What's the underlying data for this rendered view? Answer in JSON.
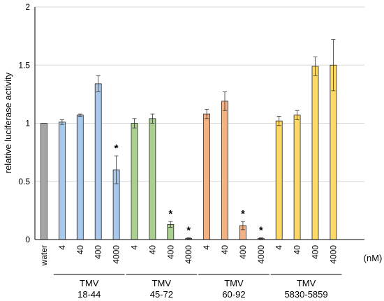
{
  "chart_data": {
    "type": "bar",
    "ylabel": "relative luciferase activity",
    "unit_label": "(nM)",
    "ylim": [
      0,
      2
    ],
    "yticks": [
      0,
      0.5,
      1,
      1.5,
      2
    ],
    "ytick_labels": [
      "0",
      "0.5",
      "1",
      "1.5",
      "2"
    ],
    "grid": true,
    "categories": [
      "water",
      "4",
      "40",
      "400",
      "4000",
      "4",
      "40",
      "400",
      "4000",
      "4",
      "40",
      "400",
      "4000",
      "4",
      "40",
      "400",
      "4000"
    ],
    "values": [
      1.0,
      1.01,
      1.07,
      1.34,
      0.6,
      1.0,
      1.04,
      0.13,
      0.01,
      1.08,
      1.19,
      0.12,
      0.01,
      1.02,
      1.07,
      1.49,
      1.5
    ],
    "errors": [
      0,
      0.02,
      0.01,
      0.07,
      0.12,
      0.04,
      0.04,
      0.025,
      0.005,
      0.04,
      0.08,
      0.035,
      0.005,
      0.04,
      0.04,
      0.08,
      0.22
    ],
    "significant": [
      false,
      false,
      false,
      false,
      true,
      false,
      false,
      true,
      true,
      false,
      false,
      true,
      true,
      false,
      false,
      false,
      false
    ],
    "sig_marker": "*",
    "group_of": [
      0,
      1,
      1,
      1,
      1,
      2,
      2,
      2,
      2,
      3,
      3,
      3,
      3,
      4,
      4,
      4,
      4
    ],
    "groups": [
      {
        "name": "water",
        "color": "#a6a6a6"
      },
      {
        "name_line1": "TMV",
        "name_line2": "18-44",
        "color": "#a9c9ec"
      },
      {
        "name_line1": "TMV",
        "name_line2": "45-72",
        "color": "#a9d08e"
      },
      {
        "name_line1": "TMV",
        "name_line2": "60-92",
        "color": "#f4b183"
      },
      {
        "name_line1": "TMV",
        "name_line2": "5830-5859",
        "color": "#ffd966"
      }
    ]
  }
}
